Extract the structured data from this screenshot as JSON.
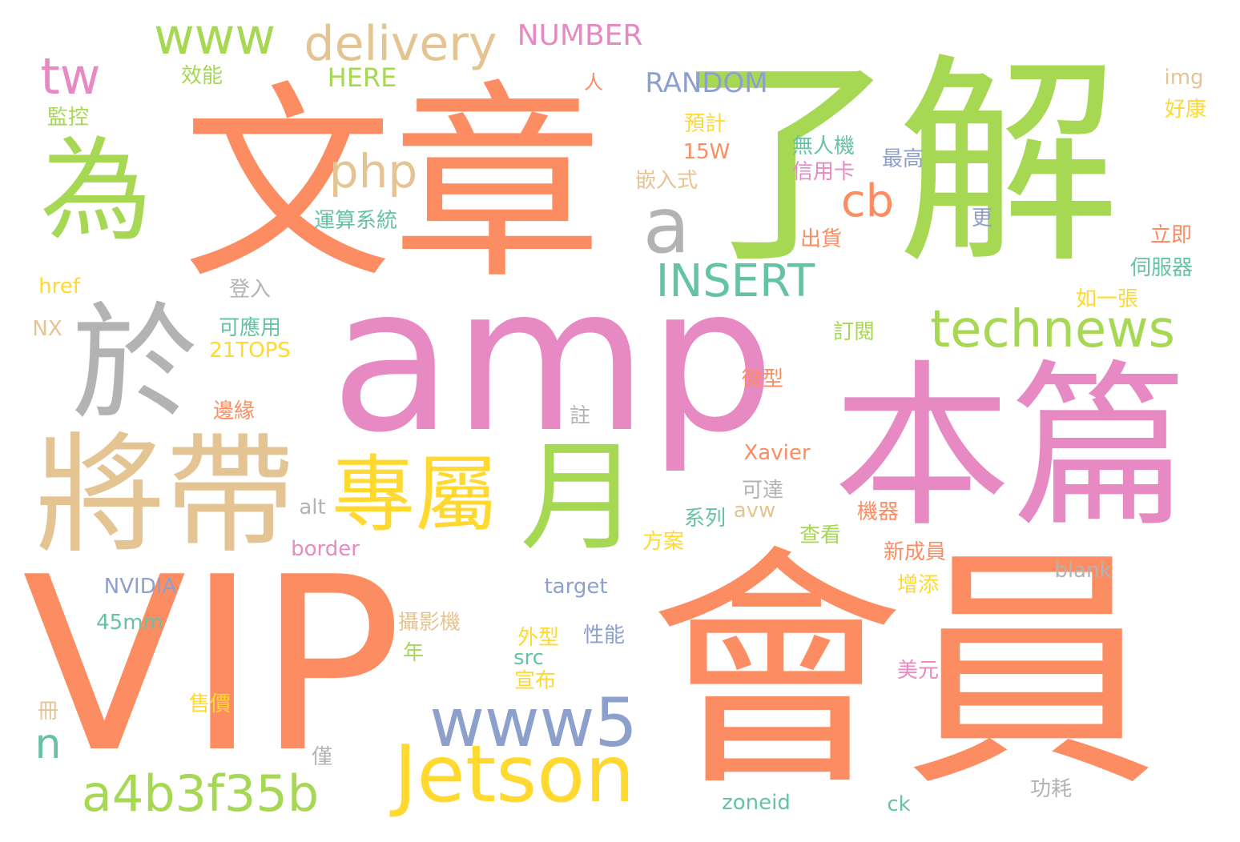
{
  "palette": {
    "orange": "#fc8d62",
    "green": "#a6d854",
    "pink": "#e78ac3",
    "tan": "#e5c494",
    "yellow": "#ffd92f",
    "blue": "#8da0cb",
    "teal": "#66c2a5",
    "gray": "#b3b3b3",
    "background": "#ffffff"
  },
  "words": [
    "文章",
    "了解",
    "amp",
    "VIP",
    "會員",
    "本篇",
    "為",
    "於",
    "將帶",
    "專屬",
    "月",
    "Jetson",
    "www5",
    "a4b3f35b",
    "technews",
    "INSERT",
    "a",
    "cb",
    "php",
    "tw",
    "www",
    "delivery",
    "NUMBER",
    "n",
    "RANDOM",
    "HERE",
    "效能",
    "人",
    "監控",
    "img",
    "好康",
    "預計",
    "15W",
    "無人機",
    "最高",
    "信用卡",
    "嵌入式",
    "運算系統",
    "更",
    "立即",
    "出貨",
    "伺服器",
    "href",
    "登入",
    "如一張",
    "可應用",
    "NX",
    "訂閱",
    "21TOPS",
    "微型",
    "註",
    "邊緣",
    "Xavier",
    "可達",
    "alt",
    "系列",
    "avw",
    "機器",
    "方案",
    "查看",
    "border",
    "新成員",
    "blank",
    "NVIDIA",
    "target",
    "增添",
    "攝影機",
    "45mm",
    "外型",
    "性能",
    "年",
    "src",
    "美元",
    "宣布",
    "售價",
    "冊",
    "僅",
    "功耗",
    "zoneid",
    "ck"
  ]
}
